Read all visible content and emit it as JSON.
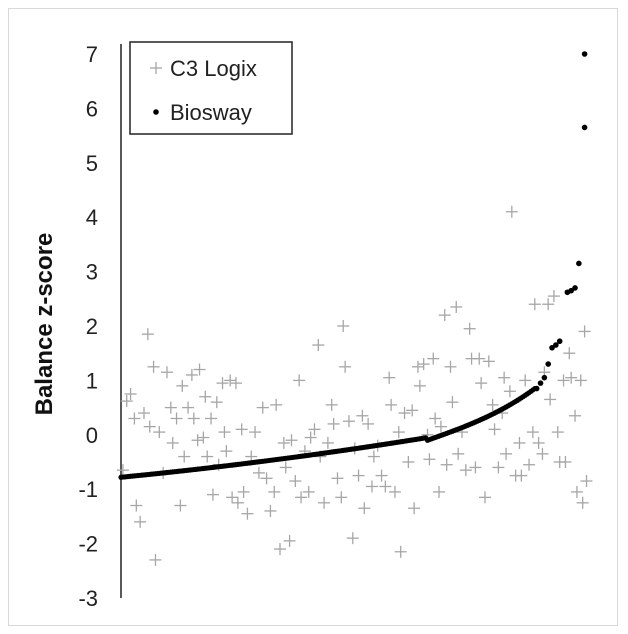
{
  "chart_data": {
    "type": "scatter",
    "title": "",
    "xlabel": "",
    "ylabel": "Balance z-score",
    "ylim": [
      -3,
      7
    ],
    "xlim": [
      0,
      261
    ],
    "y_ticks": [
      "7",
      "6",
      "5",
      "4",
      "3",
      "2",
      "1",
      "0",
      "-1",
      "-2",
      "-3"
    ],
    "y_tick_values": [
      7,
      6,
      5,
      4,
      3,
      2,
      1,
      0,
      -1,
      -2,
      -3
    ],
    "grid": false,
    "legend_position": "top-left",
    "series": [
      {
        "name": "C3 Logix",
        "marker": "plus",
        "color": "#a6a6a6",
        "points": [
          [
            1,
            -0.65
          ],
          [
            3,
            0.62
          ],
          [
            5,
            0.75
          ],
          [
            7,
            0.3
          ],
          [
            8,
            -1.3
          ],
          [
            10,
            -1.6
          ],
          [
            12,
            0.4
          ],
          [
            14,
            1.85
          ],
          [
            15,
            0.15
          ],
          [
            17,
            1.25
          ],
          [
            18,
            -2.3
          ],
          [
            20,
            0.05
          ],
          [
            22,
            -0.7
          ],
          [
            24,
            1.15
          ],
          [
            26,
            0.5
          ],
          [
            27,
            -0.15
          ],
          [
            29,
            0.3
          ],
          [
            31,
            -1.3
          ],
          [
            32,
            0.9
          ],
          [
            33,
            -0.4
          ],
          [
            35,
            0.5
          ],
          [
            37,
            1.1
          ],
          [
            38,
            0.3
          ],
          [
            40,
            -0.1
          ],
          [
            41,
            1.2
          ],
          [
            43,
            -0.05
          ],
          [
            44,
            0.7
          ],
          [
            45,
            -0.4
          ],
          [
            47,
            0.3
          ],
          [
            48,
            -1.1
          ],
          [
            50,
            0.6
          ],
          [
            51,
            -0.55
          ],
          [
            53,
            0.95
          ],
          [
            54,
            0.05
          ],
          [
            55,
            -0.3
          ],
          [
            57,
            1.0
          ],
          [
            58,
            -1.15
          ],
          [
            60,
            0.95
          ],
          [
            61,
            -1.25
          ],
          [
            63,
            0.1
          ],
          [
            64,
            -1.05
          ],
          [
            66,
            -1.45
          ],
          [
            68,
            -0.4
          ],
          [
            70,
            0.05
          ],
          [
            72,
            -0.7
          ],
          [
            74,
            0.5
          ],
          [
            76,
            -0.8
          ],
          [
            78,
            -1.4
          ],
          [
            80,
            -1.05
          ],
          [
            81,
            0.55
          ],
          [
            83,
            -2.1
          ],
          [
            85,
            -0.15
          ],
          [
            86,
            -0.6
          ],
          [
            88,
            -1.95
          ],
          [
            89,
            -0.1
          ],
          [
            91,
            -0.85
          ],
          [
            93,
            1.0
          ],
          [
            94,
            -1.15
          ],
          [
            96,
            -0.3
          ],
          [
            98,
            -1.05
          ],
          [
            99,
            -0.05
          ],
          [
            101,
            0.1
          ],
          [
            103,
            1.65
          ],
          [
            104,
            -0.4
          ],
          [
            106,
            -1.25
          ],
          [
            108,
            -0.15
          ],
          [
            110,
            0.55
          ],
          [
            111,
            0.2
          ],
          [
            113,
            -0.8
          ],
          [
            115,
            -1.15
          ],
          [
            116,
            2.0
          ],
          [
            117,
            1.25
          ],
          [
            119,
            0.25
          ],
          [
            121,
            -1.9
          ],
          [
            122,
            -0.25
          ],
          [
            124,
            -0.75
          ],
          [
            126,
            0.35
          ],
          [
            127,
            -1.35
          ],
          [
            129,
            0.2
          ],
          [
            131,
            -0.95
          ],
          [
            132,
            -0.4
          ],
          [
            134,
            -0.2
          ],
          [
            136,
            -0.75
          ],
          [
            138,
            -0.95
          ],
          [
            140,
            1.05
          ],
          [
            141,
            0.55
          ],
          [
            143,
            -1.05
          ],
          [
            145,
            0.05
          ],
          [
            146,
            -2.15
          ],
          [
            148,
            0.4
          ],
          [
            150,
            -0.5
          ],
          [
            152,
            0.45
          ],
          [
            153,
            -1.35
          ],
          [
            155,
            1.25
          ],
          [
            156,
            0.9
          ],
          [
            158,
            1.3
          ],
          [
            160,
            0.0
          ],
          [
            161,
            -0.45
          ],
          [
            163,
            1.4
          ],
          [
            164,
            0.3
          ],
          [
            166,
            -1.05
          ],
          [
            167,
            0.15
          ],
          [
            169,
            2.2
          ],
          [
            170,
            -0.55
          ],
          [
            172,
            1.25
          ],
          [
            173,
            0.6
          ],
          [
            175,
            2.35
          ],
          [
            176,
            -0.35
          ],
          [
            178,
            0.05
          ],
          [
            180,
            -0.65
          ],
          [
            182,
            1.95
          ],
          [
            183,
            1.4
          ],
          [
            185,
            -0.6
          ],
          [
            187,
            1.4
          ],
          [
            188,
            0.95
          ],
          [
            190,
            -1.15
          ],
          [
            192,
            1.35
          ],
          [
            194,
            0.55
          ],
          [
            195,
            0.1
          ],
          [
            197,
            -0.6
          ],
          [
            199,
            0.4
          ],
          [
            200,
            1.05
          ],
          [
            201,
            -0.35
          ],
          [
            203,
            0.8
          ],
          [
            204,
            4.1
          ],
          [
            206,
            -0.75
          ],
          [
            208,
            -0.15
          ],
          [
            209,
            -0.75
          ],
          [
            211,
            1.0
          ],
          [
            213,
            -0.55
          ],
          [
            215,
            0.05
          ],
          [
            216,
            2.4
          ],
          [
            218,
            -0.15
          ],
          [
            220,
            -0.35
          ],
          [
            221,
            1.15
          ],
          [
            223,
            2.4
          ],
          [
            224,
            0.65
          ],
          [
            226,
            2.55
          ],
          [
            228,
            0.05
          ],
          [
            229,
            -0.5
          ],
          [
            231,
            1.0
          ],
          [
            232,
            -0.5
          ],
          [
            234,
            1.5
          ],
          [
            235,
            1.05
          ],
          [
            237,
            0.35
          ],
          [
            238,
            -1.05
          ],
          [
            240,
            1.0
          ],
          [
            241,
            -1.25
          ],
          [
            242,
            1.9
          ],
          [
            243,
            -0.85
          ]
        ]
      },
      {
        "name": "Biosway",
        "marker": "dot",
        "color": "#000000",
        "points": [
          [
            242,
            7.0
          ],
          [
            242,
            5.65
          ],
          [
            239,
            3.15
          ],
          [
            237,
            2.7
          ],
          [
            235,
            2.65
          ],
          [
            233,
            2.62
          ],
          [
            229,
            1.72
          ],
          [
            227,
            1.65
          ],
          [
            225,
            1.6
          ],
          [
            223,
            1.3
          ],
          [
            221,
            1.05
          ],
          [
            219,
            0.95
          ],
          [
            217,
            0.85
          ]
        ]
      }
    ]
  }
}
